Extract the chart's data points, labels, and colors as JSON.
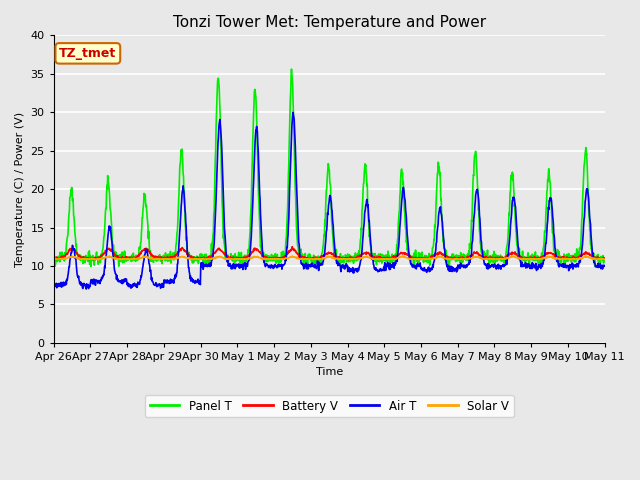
{
  "title": "Tonzi Tower Met: Temperature and Power",
  "xlabel": "Time",
  "ylabel": "Temperature (C) / Power (V)",
  "ylim": [
    0,
    40
  ],
  "yticks": [
    0,
    5,
    10,
    15,
    20,
    25,
    30,
    35,
    40
  ],
  "annotation_text": "TZ_tmet",
  "annotation_bbox_facecolor": "#FFFFCC",
  "annotation_bbox_edgecolor": "#CC6600",
  "annotation_text_color": "#CC0000",
  "fig_facecolor": "#E8E8E8",
  "ax_facecolor": "#E8E8E8",
  "series": {
    "panel_t": {
      "color": "#00EE00",
      "label": "Panel T",
      "lw": 1.2
    },
    "battery_v": {
      "color": "#FF0000",
      "label": "Battery V",
      "lw": 1.2
    },
    "air_t": {
      "color": "#0000EE",
      "label": "Air T",
      "lw": 1.2
    },
    "solar_v": {
      "color": "#FFA500",
      "label": "Solar V",
      "lw": 1.2
    }
  },
  "x_tick_labels": [
    "Apr 26",
    "Apr 27",
    "Apr 28",
    "Apr 29",
    "Apr 30",
    "May 1",
    "May 2",
    "May 3",
    "May 4",
    "May 5",
    "May 6",
    "May 7",
    "May 8",
    "May 9",
    "May 10",
    "May 11"
  ],
  "x_tick_positions": [
    0,
    1,
    2,
    3,
    4,
    5,
    6,
    7,
    8,
    9,
    10,
    11,
    12,
    13,
    14,
    15
  ],
  "title_fontsize": 11,
  "axis_label_fontsize": 8,
  "tick_fontsize": 8
}
